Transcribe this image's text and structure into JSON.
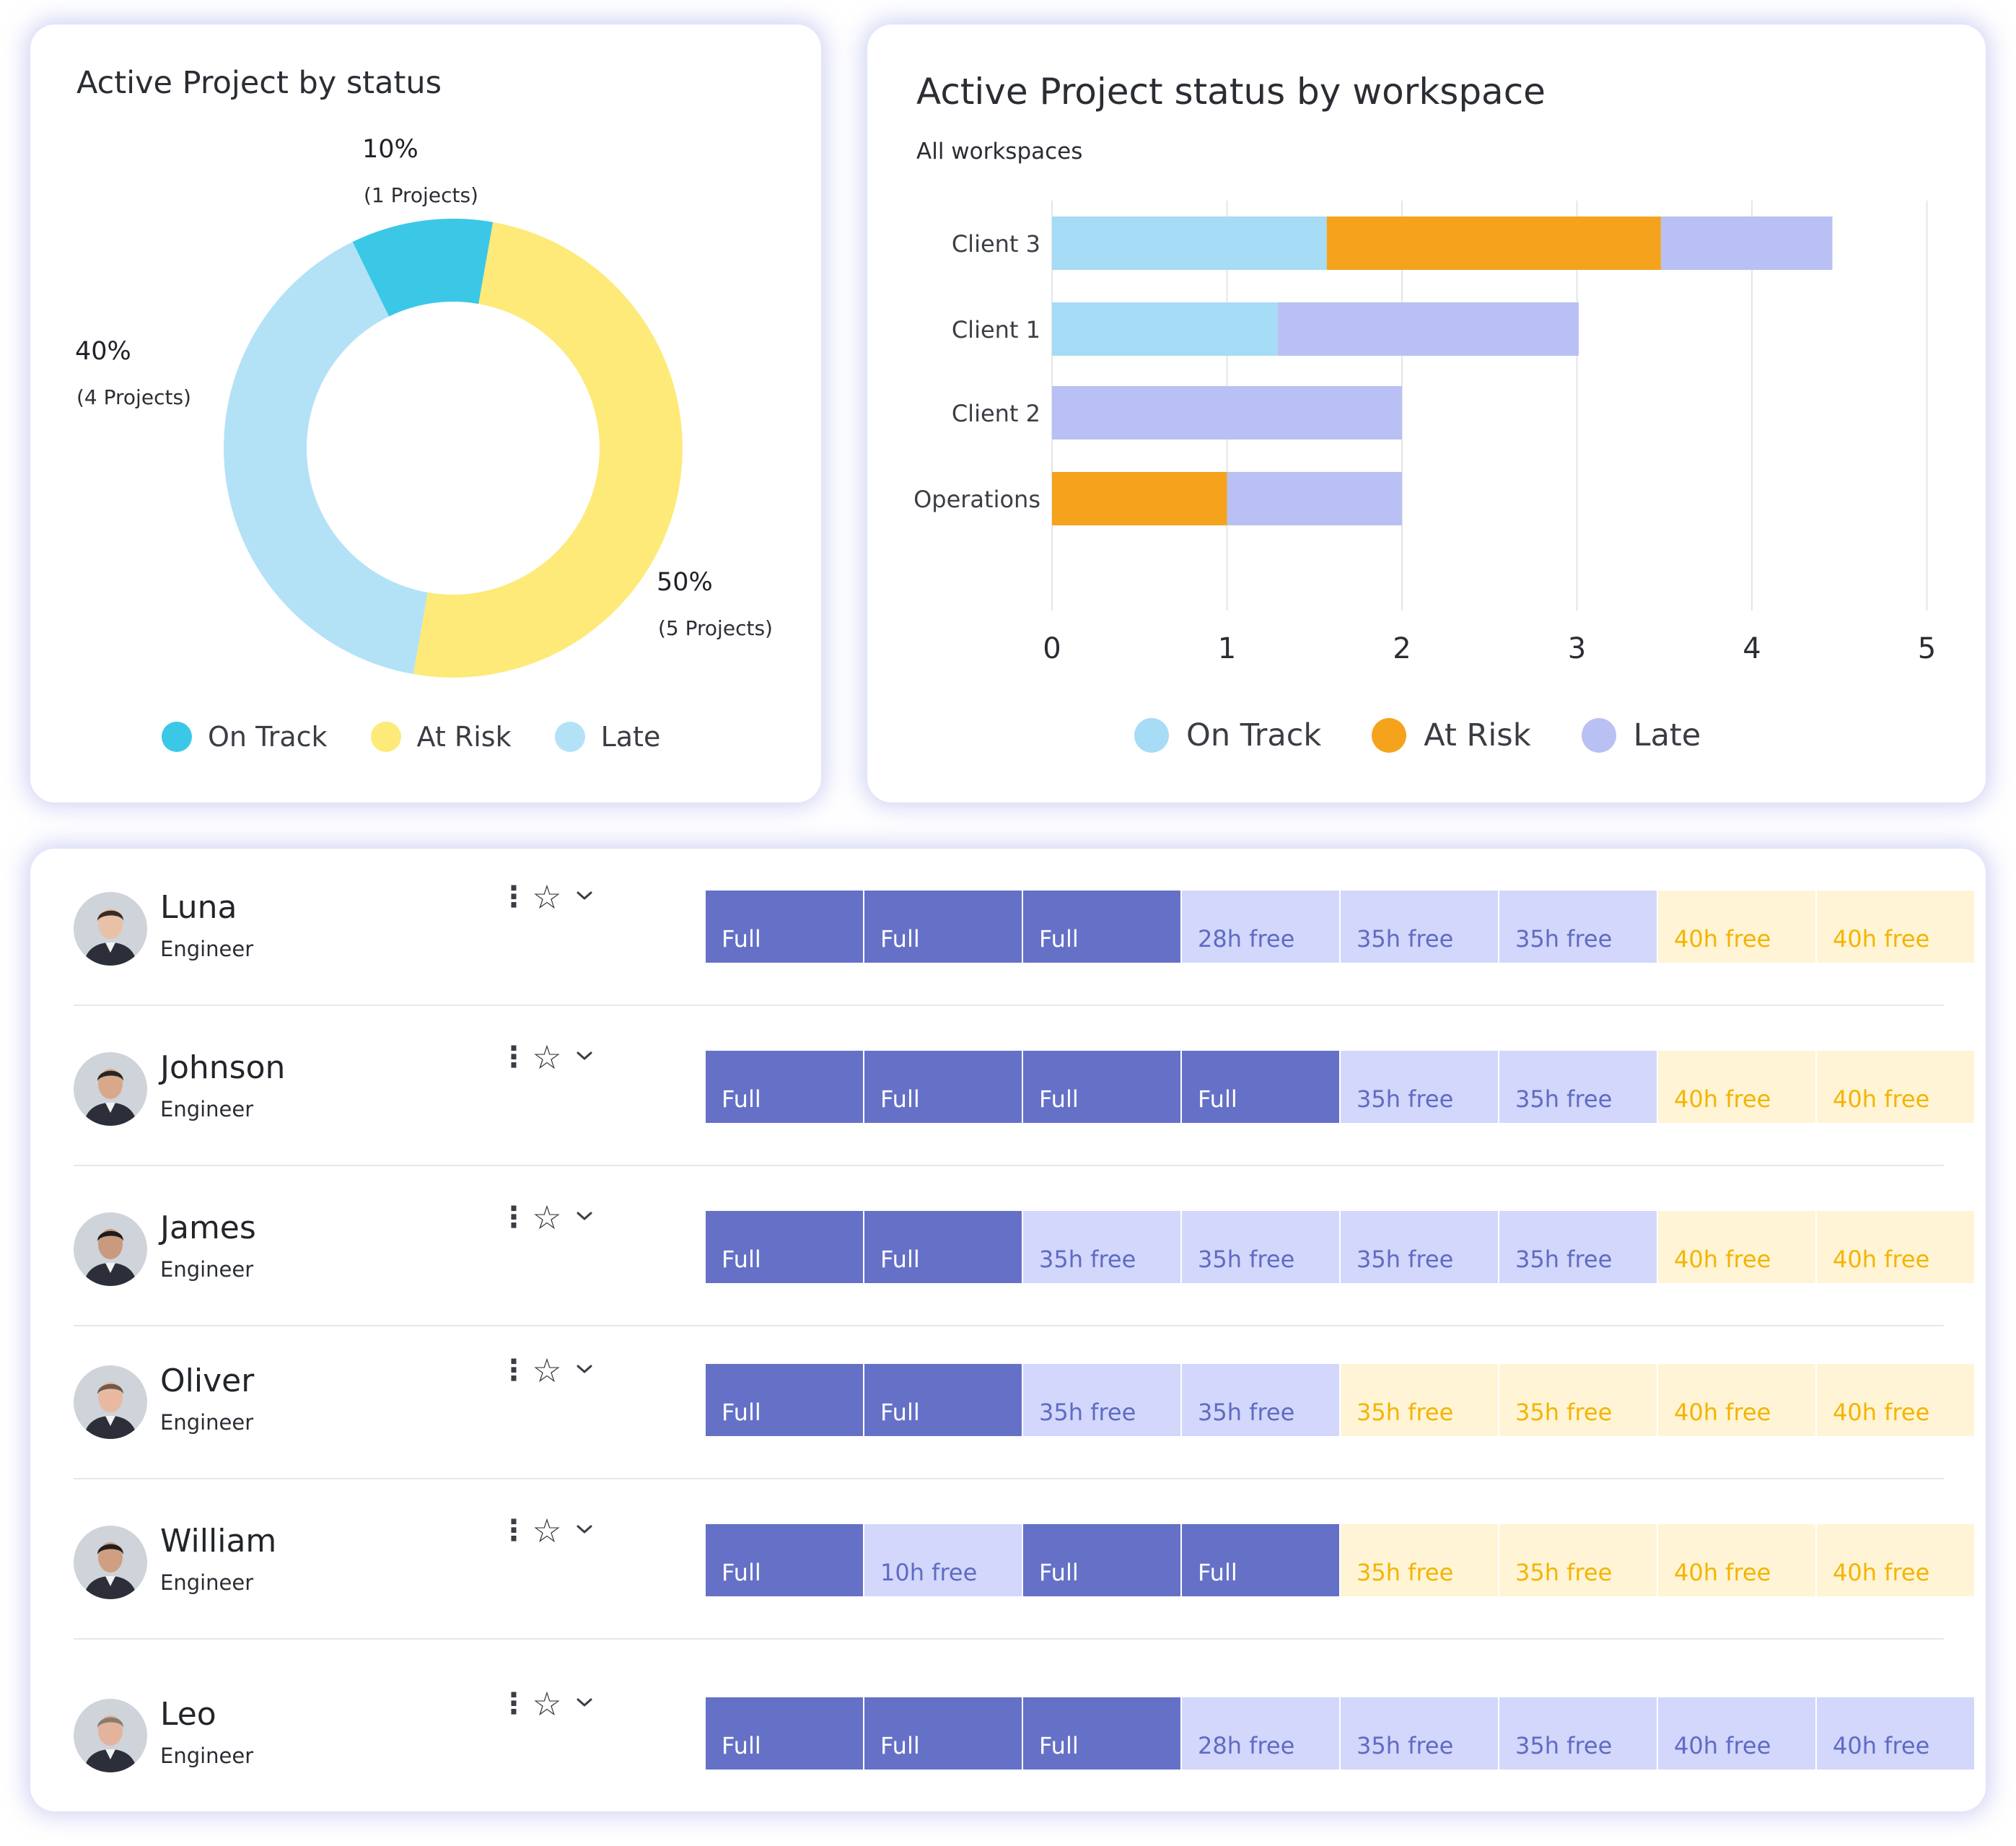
{
  "colors": {
    "on_track_donut": "#3bc8e6",
    "at_risk_donut": "#fdea78",
    "late_donut": "#b3e2f7",
    "on_track_bar": "#a6dcf5",
    "at_risk_bar": "#f5a31c",
    "late_bar": "#b9c0f3",
    "full_cell": "#6571c6",
    "free_blue_cell": "#d2d7fb",
    "free_yellow_cell": "#fff4d5"
  },
  "chart_data": [
    {
      "type": "pie",
      "title": "Active Project by status",
      "categories": [
        "On Track",
        "At Risk",
        "Late"
      ],
      "values": [
        10,
        50,
        40
      ],
      "percent_labels": [
        "10%",
        "50%",
        "40%"
      ],
      "count_labels": [
        "(1 Projects)",
        "(5 Projects)",
        "(4 Projects)"
      ],
      "legend": [
        "On Track",
        "At Risk",
        "Late"
      ]
    },
    {
      "type": "bar",
      "orientation": "horizontal",
      "stacked": true,
      "title": "Active Project status by workspace",
      "subtitle": "All workspaces",
      "categories": [
        "Client 3",
        "Client 1",
        "Client 2",
        "Operations"
      ],
      "series": [
        {
          "name": "On Track",
          "values": [
            1.57,
            1.29,
            0,
            0
          ]
        },
        {
          "name": "At Risk",
          "values": [
            1.91,
            0,
            0,
            1.0
          ]
        },
        {
          "name": "Late",
          "values": [
            0.98,
            1.72,
            2.0,
            1.0
          ]
        }
      ],
      "x_ticks": [
        "0",
        "1",
        "2",
        "3",
        "4",
        "5"
      ],
      "xlim": [
        0,
        5
      ],
      "legend": [
        "On Track",
        "At Risk",
        "Late"
      ]
    }
  ],
  "people": [
    {
      "name": "Luna",
      "role": "Engineer",
      "cells": [
        "Full",
        "Full",
        "Full",
        "28h free",
        "35h free",
        "35h free",
        "40h free",
        "40h free"
      ],
      "cell_types": [
        "full",
        "full",
        "full",
        "blue",
        "blue",
        "blue",
        "yellow",
        "yellow"
      ]
    },
    {
      "name": "Johnson",
      "role": "Engineer",
      "cells": [
        "Full",
        "Full",
        "Full",
        "Full",
        "35h free",
        "35h free",
        "40h free",
        "40h free"
      ],
      "cell_types": [
        "full",
        "full",
        "full",
        "full",
        "blue",
        "blue",
        "yellow",
        "yellow"
      ]
    },
    {
      "name": "James",
      "role": "Engineer",
      "cells": [
        "Full",
        "Full",
        "35h free",
        "35h free",
        "35h free",
        "35h free",
        "40h free",
        "40h free"
      ],
      "cell_types": [
        "full",
        "full",
        "blue",
        "blue",
        "blue",
        "blue",
        "yellow",
        "yellow"
      ]
    },
    {
      "name": "Oliver",
      "role": "Engineer",
      "cells": [
        "Full",
        "Full",
        "35h free",
        "35h free",
        "35h free",
        "35h free",
        "40h free",
        "40h free"
      ],
      "cell_types": [
        "full",
        "full",
        "blue",
        "blue",
        "yellow",
        "yellow",
        "yellow",
        "yellow"
      ]
    },
    {
      "name": "William",
      "role": "Engineer",
      "cells": [
        "Full",
        "10h free",
        "Full",
        "Full",
        "35h free",
        "35h free",
        "40h free",
        "40h free"
      ],
      "cell_types": [
        "full",
        "blue",
        "full",
        "full",
        "yellow",
        "yellow",
        "yellow",
        "yellow"
      ]
    },
    {
      "name": "Leo",
      "role": "Engineer",
      "cells": [
        "Full",
        "Full",
        "Full",
        "28h free",
        "35h free",
        "35h free",
        "40h free",
        "40h free"
      ],
      "cell_types": [
        "full",
        "full",
        "full",
        "blue",
        "blue",
        "blue",
        "blue",
        "blue"
      ]
    }
  ],
  "icons": {
    "more": "kebab-icon",
    "favorite": "star-icon",
    "expand": "chevron-down-icon",
    "avatar": "avatar"
  }
}
